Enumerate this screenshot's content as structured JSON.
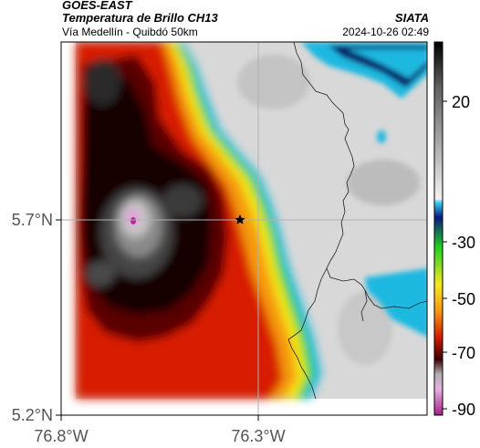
{
  "header": {
    "satellite": "GOES-EAST",
    "product": "Temperatura de Brillo CH13",
    "region": "Vía Medellín - Quibdó 50km",
    "agency": "SIATA",
    "datetime": "2024-10-26 02:49"
  },
  "axes": {
    "x_ticks": [
      "76.8°W",
      "76.3°W"
    ],
    "y_ticks": [
      "5.7°N",
      "5.2°N"
    ]
  },
  "colorbar": {
    "tick_labels": [
      "20",
      "-30",
      "-50",
      "-70",
      "-90"
    ]
  },
  "colors": {
    "warm_gray": "#dcdcdc",
    "cyan": "#1ab8e0",
    "dark_blue": "#0a1a66",
    "green": "#21d31b",
    "yellow": "#f6e91a",
    "orange": "#f59a10",
    "red": "#d81e00",
    "dark_red": "#5a0000",
    "black": "#120000",
    "gray_cold": "#9a9a9a",
    "pink": "#e0a0d8",
    "magenta": "#b02a9a"
  }
}
